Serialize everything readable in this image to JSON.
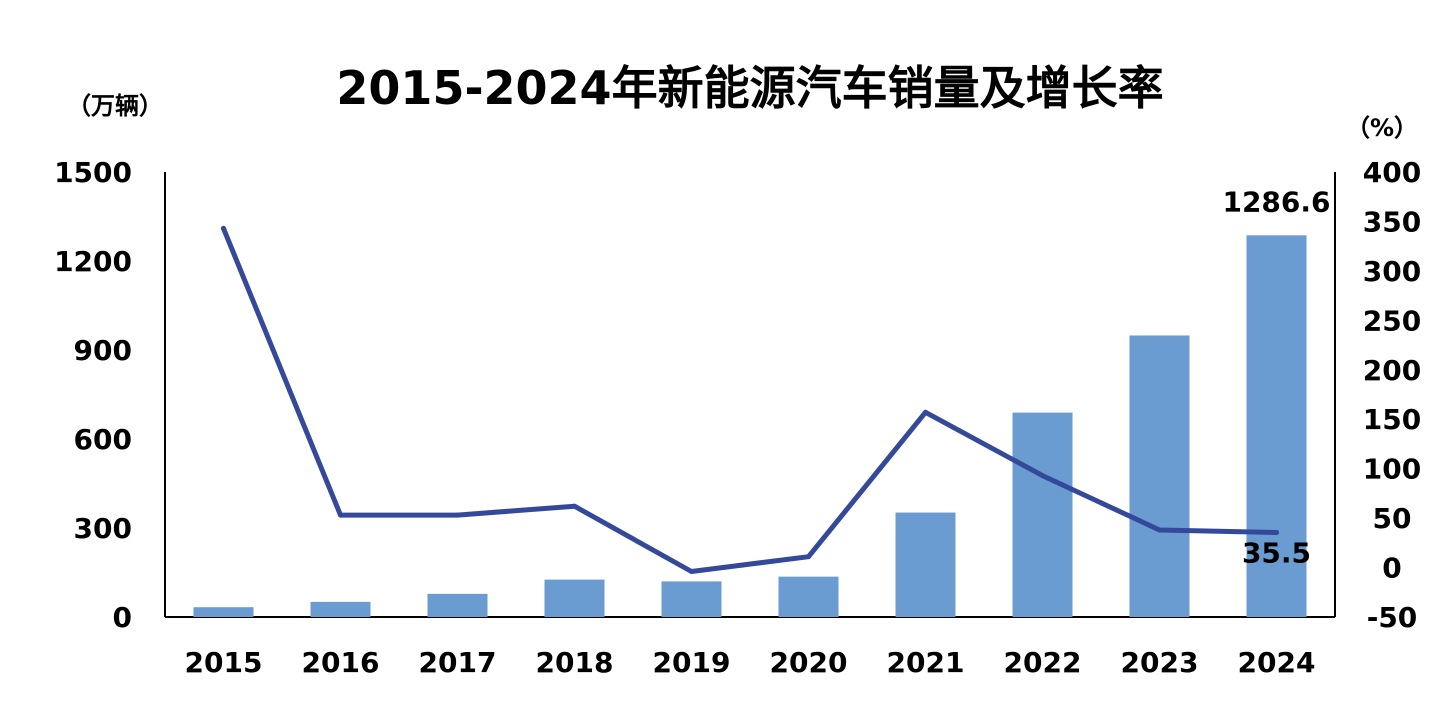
{
  "chart_data": {
    "type": "bar",
    "title": "2015-2024年新能源汽车销量及增长率",
    "left_unit": "（万辆）",
    "right_unit": "（%）",
    "categories": [
      "2015",
      "2016",
      "2017",
      "2018",
      "2019",
      "2020",
      "2021",
      "2022",
      "2023",
      "2024"
    ],
    "series": [
      {
        "type": "bar",
        "axis": "left",
        "color": "#6A9BD1",
        "values": [
          33,
          51,
          78,
          126,
          120,
          136,
          352,
          689,
          949,
          1286.6
        ]
      },
      {
        "type": "line",
        "axis": "right",
        "color": "#34499A",
        "values": [
          343,
          53,
          53,
          62,
          -4,
          11,
          157,
          93,
          38,
          35.5
        ]
      }
    ],
    "left_axis": {
      "ylim": [
        0,
        1500
      ],
      "ticks": [
        "0",
        "300",
        "600",
        "900",
        "1200",
        "1500"
      ]
    },
    "right_axis": {
      "ylim": [
        -50,
        400
      ],
      "ticks": [
        "-50",
        "0",
        "50",
        "100",
        "150",
        "200",
        "250",
        "300",
        "350",
        "400"
      ]
    },
    "data_labels": [
      {
        "series": 0,
        "index": 9,
        "text": "1286.6"
      },
      {
        "series": 1,
        "index": 9,
        "text": "35.5"
      }
    ],
    "grid": false,
    "legend": "none"
  }
}
